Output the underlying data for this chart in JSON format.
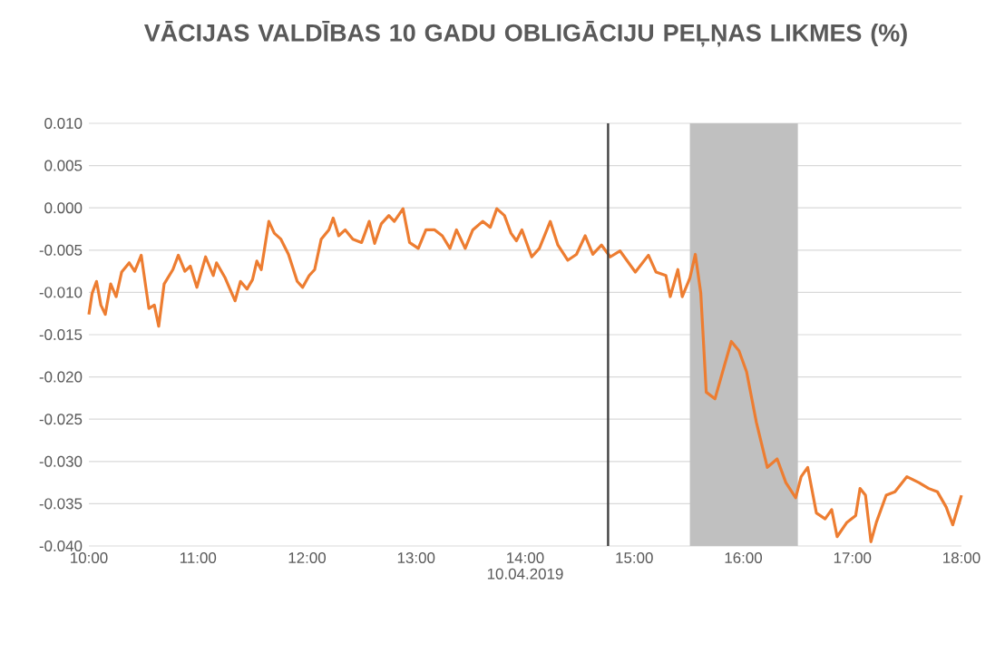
{
  "chart_data": {
    "type": "line",
    "title": "VĀCIJAS VALDĪBAS 10 GADU OBLIGĀCIJU PEĻŅAS LIKMES (%)",
    "xlabel": "10.04.2019",
    "x": [
      10.0,
      10.03,
      10.07,
      10.11,
      10.15,
      10.2,
      10.25,
      10.3,
      10.37,
      10.42,
      10.48,
      10.55,
      10.6,
      10.64,
      10.69,
      10.77,
      10.82,
      10.88,
      10.93,
      10.99,
      11.07,
      11.14,
      11.17,
      11.25,
      11.34,
      11.39,
      11.45,
      11.5,
      11.54,
      11.58,
      11.65,
      11.7,
      11.76,
      11.83,
      11.91,
      11.96,
      12.02,
      12.07,
      12.13,
      12.2,
      12.24,
      12.29,
      12.35,
      12.42,
      12.5,
      12.57,
      12.62,
      12.68,
      12.75,
      12.8,
      12.88,
      12.94,
      13.02,
      13.09,
      13.17,
      13.24,
      13.31,
      13.37,
      13.45,
      13.52,
      13.61,
      13.68,
      13.74,
      13.81,
      13.87,
      13.92,
      13.97,
      14.06,
      14.13,
      14.23,
      14.3,
      14.39,
      14.47,
      14.55,
      14.62,
      14.7,
      14.78,
      14.87,
      15.01,
      15.13,
      15.2,
      15.29,
      15.33,
      15.4,
      15.44,
      15.51,
      15.56,
      15.61,
      15.66,
      15.74,
      15.81,
      15.89,
      15.96,
      16.03,
      16.12,
      16.22,
      16.31,
      16.39,
      16.48,
      16.53,
      16.59,
      16.67,
      16.75,
      16.81,
      16.86,
      16.95,
      17.03,
      17.07,
      17.12,
      17.17,
      17.22,
      17.31,
      17.39,
      17.5,
      17.61,
      17.7,
      17.78,
      17.86,
      17.92,
      18.0
    ],
    "series": [
      {
        "color": "#ed7d31",
        "values": [
          -0.0126,
          -0.0101,
          -0.0087,
          -0.0115,
          -0.0126,
          -0.009,
          -0.0105,
          -0.0076,
          -0.0065,
          -0.0075,
          -0.0056,
          -0.0119,
          -0.0115,
          -0.014,
          -0.009,
          -0.0073,
          -0.0056,
          -0.0075,
          -0.0069,
          -0.0094,
          -0.0058,
          -0.008,
          -0.0065,
          -0.0083,
          -0.011,
          -0.0087,
          -0.0096,
          -0.0085,
          -0.0063,
          -0.0073,
          -0.0016,
          -0.003,
          -0.0037,
          -0.0055,
          -0.0087,
          -0.0094,
          -0.008,
          -0.0073,
          -0.0037,
          -0.0026,
          -0.0012,
          -0.0033,
          -0.0026,
          -0.0037,
          -0.0041,
          -0.0016,
          -0.0042,
          -0.0019,
          -0.0009,
          -0.0016,
          -0.0001,
          -0.0041,
          -0.0048,
          -0.0026,
          -0.0026,
          -0.0033,
          -0.0048,
          -0.0026,
          -0.0048,
          -0.0026,
          -0.0016,
          -0.0023,
          -0.0001,
          -0.0009,
          -0.003,
          -0.0039,
          -0.0026,
          -0.0058,
          -0.0048,
          -0.0016,
          -0.0044,
          -0.0062,
          -0.0055,
          -0.0033,
          -0.0055,
          -0.0044,
          -0.0058,
          -0.0051,
          -0.0076,
          -0.0056,
          -0.0076,
          -0.008,
          -0.0105,
          -0.0073,
          -0.0105,
          -0.0083,
          -0.0055,
          -0.0101,
          -0.0218,
          -0.0226,
          -0.0194,
          -0.0158,
          -0.0169,
          -0.0194,
          -0.0254,
          -0.0307,
          -0.0297,
          -0.0325,
          -0.0343,
          -0.0318,
          -0.0307,
          -0.0361,
          -0.0368,
          -0.0357,
          -0.0389,
          -0.0372,
          -0.0364,
          -0.0332,
          -0.034,
          -0.0395,
          -0.0372,
          -0.034,
          -0.0336,
          -0.0318,
          -0.0325,
          -0.0332,
          -0.0336,
          -0.0354,
          -0.0375,
          -0.034
        ]
      }
    ],
    "xlim": [
      10,
      18
    ],
    "xticks": [
      {
        "value": 10,
        "label": "10:00"
      },
      {
        "value": 11,
        "label": "11:00"
      },
      {
        "value": 12,
        "label": "12:00"
      },
      {
        "value": 13,
        "label": "13:00"
      },
      {
        "value": 14,
        "label": "14:00"
      },
      {
        "value": 15,
        "label": "15:00"
      },
      {
        "value": 16,
        "label": "16:00"
      },
      {
        "value": 17,
        "label": "17:00"
      },
      {
        "value": 18,
        "label": "18:00"
      }
    ],
    "ylim": [
      -0.04,
      0.01
    ],
    "yticks": [
      {
        "value": -0.04,
        "label": "-0.040"
      },
      {
        "value": -0.035,
        "label": "-0.035"
      },
      {
        "value": -0.03,
        "label": "-0.030"
      },
      {
        "value": -0.025,
        "label": "-0.025"
      },
      {
        "value": -0.02,
        "label": "-0.020"
      },
      {
        "value": -0.015,
        "label": "-0.015"
      },
      {
        "value": -0.01,
        "label": "-0.010"
      },
      {
        "value": -0.005,
        "label": "-0.005"
      },
      {
        "value": 0,
        "label": "0.000"
      },
      {
        "value": 0.005,
        "label": "0.005"
      },
      {
        "value": 0.01,
        "label": "0.010"
      }
    ],
    "grid": "y",
    "ref_lines": [
      {
        "axis": "x",
        "value": 14.76,
        "color": "#404040"
      }
    ],
    "bands": [
      {
        "axis": "x",
        "from": 15.51,
        "to": 16.5,
        "color": "#c0c0c0"
      }
    ],
    "marker": "none",
    "line_style": "solid",
    "legend": false
  }
}
